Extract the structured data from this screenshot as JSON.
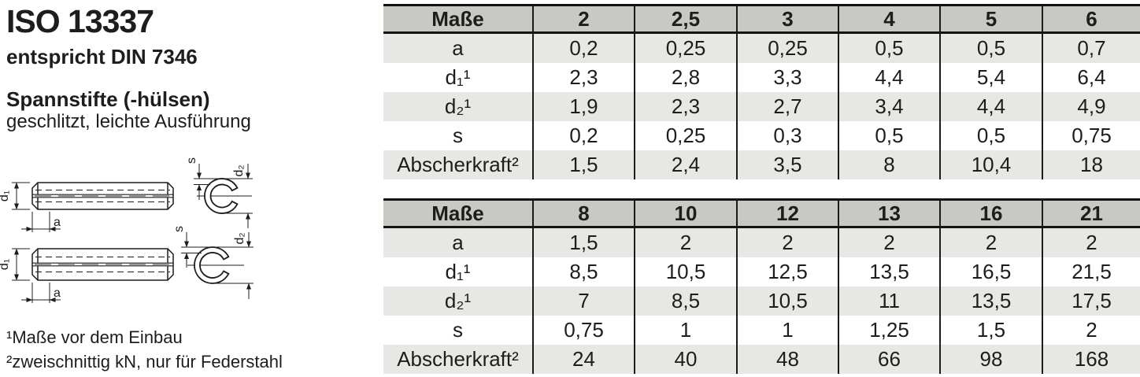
{
  "header": {
    "standard": "ISO 13337",
    "equivalent": "entspricht DIN 7346",
    "title": "Spannstifte (-hülsen)",
    "subtitle": "geschlitzt, leichte Ausführung"
  },
  "drawing": {
    "labels": {
      "d1": "d₁",
      "a": "a",
      "s": "s",
      "d2": "d₂"
    }
  },
  "footnotes": [
    "¹Maße vor dem Einbau",
    "²zweischnittig kN, nur für Federstahl"
  ],
  "tables": [
    {
      "columns": [
        "Maße",
        "2",
        "2,5",
        "3",
        "4",
        "5",
        "6"
      ],
      "rows": [
        {
          "label": "a",
          "values": [
            "0,2",
            "0,25",
            "0,25",
            "0,5",
            "0,5",
            "0,7"
          ]
        },
        {
          "label": "d₁¹",
          "values": [
            "2,3",
            "2,8",
            "3,3",
            "4,4",
            "5,4",
            "6,4"
          ]
        },
        {
          "label": "d₂¹",
          "values": [
            "1,9",
            "2,3",
            "2,7",
            "3,4",
            "4,4",
            "4,9"
          ]
        },
        {
          "label": "s",
          "values": [
            "0,2",
            "0,25",
            "0,3",
            "0,5",
            "0,5",
            "0,75"
          ]
        },
        {
          "label": "Abscherkraft²",
          "values": [
            "1,5",
            "2,4",
            "3,5",
            "8",
            "10,4",
            "18"
          ]
        }
      ]
    },
    {
      "columns": [
        "Maße",
        "8",
        "10",
        "12",
        "13",
        "16",
        "21"
      ],
      "rows": [
        {
          "label": "a",
          "values": [
            "1,5",
            "2",
            "2",
            "2",
            "2",
            "2"
          ]
        },
        {
          "label": "d₁¹",
          "values": [
            "8,5",
            "10,5",
            "12,5",
            "13,5",
            "16,5",
            "21,5"
          ]
        },
        {
          "label": "d₂¹",
          "values": [
            "7",
            "8,5",
            "10,5",
            "11",
            "13,5",
            "17,5"
          ]
        },
        {
          "label": "s",
          "values": [
            "0,75",
            "1",
            "1",
            "1,25",
            "1,5",
            "2"
          ]
        },
        {
          "label": "Abscherkraft²",
          "values": [
            "24",
            "40",
            "48",
            "66",
            "98",
            "168"
          ]
        }
      ]
    }
  ],
  "colors": {
    "table_header_bg": "#c8c8c5",
    "row_stripe_bg": "#e7e7e5",
    "border": "#1b1b19",
    "text": "#1d1d1b"
  }
}
